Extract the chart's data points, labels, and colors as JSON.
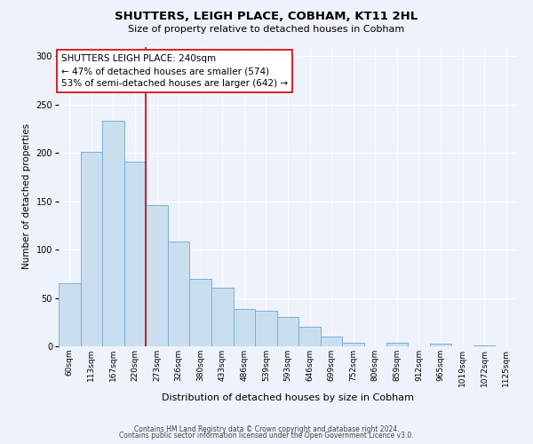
{
  "title": "SHUTTERS, LEIGH PLACE, COBHAM, KT11 2HL",
  "subtitle": "Size of property relative to detached houses in Cobham",
  "xlabel": "Distribution of detached houses by size in Cobham",
  "ylabel": "Number of detached properties",
  "categories": [
    "60sqm",
    "113sqm",
    "167sqm",
    "220sqm",
    "273sqm",
    "326sqm",
    "380sqm",
    "433sqm",
    "486sqm",
    "539sqm",
    "593sqm",
    "646sqm",
    "699sqm",
    "752sqm",
    "806sqm",
    "859sqm",
    "912sqm",
    "965sqm",
    "1019sqm",
    "1072sqm",
    "1125sqm"
  ],
  "values": [
    65,
    201,
    233,
    191,
    146,
    108,
    70,
    61,
    39,
    37,
    30,
    20,
    10,
    4,
    0,
    4,
    0,
    3,
    0,
    1,
    0
  ],
  "bar_color": "#c9dff0",
  "bar_edge_color": "#7bafd4",
  "vline_x": 4,
  "vline_color": "#cc0000",
  "annotation_text": "SHUTTERS LEIGH PLACE: 240sqm\n← 47% of detached houses are smaller (574)\n53% of semi-detached houses are larger (642) →",
  "annotation_box_color": "white",
  "annotation_box_edge": "#cc0000",
  "ylim": [
    0,
    310
  ],
  "yticks": [
    0,
    50,
    100,
    150,
    200,
    250,
    300
  ],
  "footer1": "Contains HM Land Registry data © Crown copyright and database right 2024.",
  "footer2": "Contains public sector information licensed under the Open Government Licence v3.0.",
  "bg_color": "#eef2fa",
  "grid_color": "#ffffff",
  "title_fontsize": 9.5,
  "subtitle_fontsize": 8,
  "tick_fontsize": 6.5,
  "ylabel_fontsize": 7.5,
  "xlabel_fontsize": 8,
  "annotation_fontsize": 7.5,
  "footer_fontsize": 5.5
}
